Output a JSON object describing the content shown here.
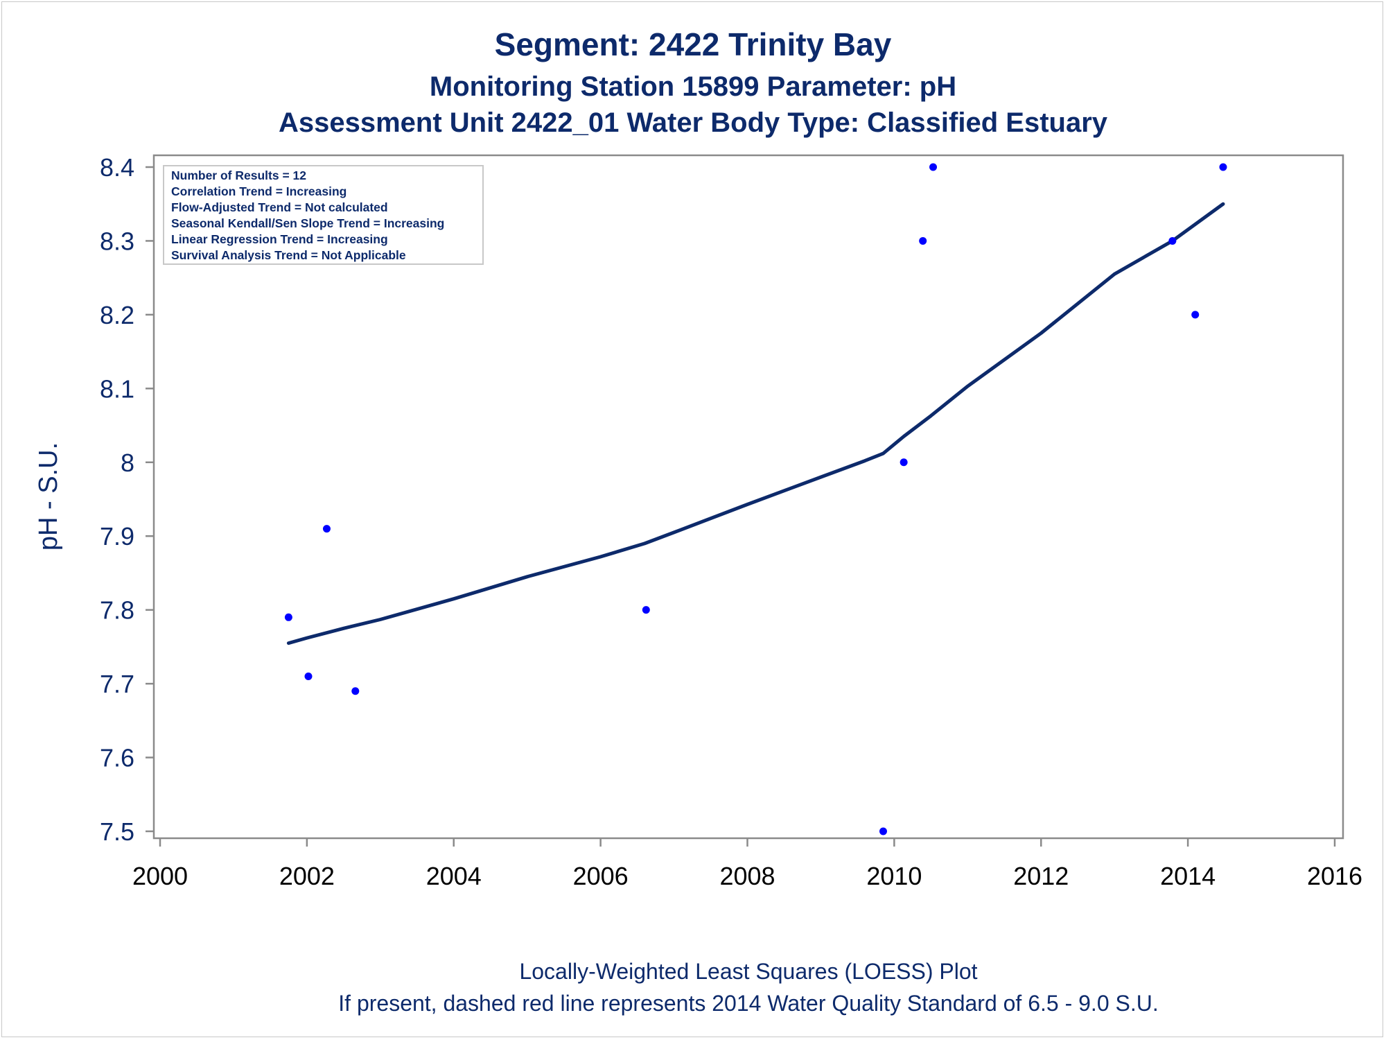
{
  "titles": {
    "line1": "Segment: 2422  Trinity Bay",
    "line2": "Monitoring Station 15899 Parameter: pH",
    "line3": "Assessment Unit 2422_01   Water Body Type: Classified Estuary"
  },
  "stats_box": {
    "lines": [
      "Number of Results = 12",
      "Correlation Trend = Increasing",
      "Flow-Adjusted Trend = Not calculated",
      "Seasonal Kendall/Sen Slope Trend = Increasing",
      "Linear Regression Trend = Increasing",
      "Survival Analysis Trend = Not Applicable"
    ]
  },
  "footnotes": {
    "line1": "Locally-Weighted Least Squares (LOESS) Plot",
    "line2": "If present, dashed red line represents 2014 Water Quality Standard of 6.5 - 9.0 S.U."
  },
  "colors": {
    "points": "#0000ff",
    "loess_line": "#0d2a6b",
    "text": "#0d2a6b",
    "axis": "#8a8a8a"
  },
  "chart_data": {
    "type": "scatter",
    "title": "Segment: 2422  Trinity Bay",
    "xlabel": "",
    "ylabel": "pH - S.U.",
    "xlim": [
      2000,
      2016
    ],
    "ylim": [
      7.5,
      8.4
    ],
    "x_ticks": [
      2000,
      2002,
      2004,
      2006,
      2008,
      2010,
      2012,
      2014,
      2016
    ],
    "y_ticks": [
      7.5,
      7.6,
      7.7,
      7.8,
      7.9,
      8,
      8.1,
      8.2,
      8.3,
      8.4
    ],
    "y_tick_labels": [
      "7.5",
      "7.6",
      "7.7",
      "7.8",
      "7.9",
      "8",
      "8.1",
      "8.2",
      "8.3",
      "8.4"
    ],
    "grid": false,
    "series": [
      {
        "kind": "points",
        "x": [
          2001.75,
          2002.02,
          2002.27,
          2002.66,
          2006.62,
          2009.85,
          2010.13,
          2010.39,
          2010.53,
          2013.79,
          2014.1,
          2014.48
        ],
        "y": [
          7.79,
          7.71,
          7.91,
          7.69,
          7.8,
          7.5,
          8.0,
          8.3,
          8.4,
          8.3,
          8.2,
          8.4
        ]
      },
      {
        "kind": "loess-line",
        "x": [
          2001.75,
          2002.0,
          2002.5,
          2003.0,
          2004.0,
          2005.0,
          2006.0,
          2006.6,
          2007.0,
          2008.0,
          2009.0,
          2009.6,
          2009.85,
          2010.13,
          2010.5,
          2011.0,
          2012.0,
          2013.0,
          2013.79,
          2014.48
        ],
        "y": [
          7.755,
          7.762,
          7.775,
          7.787,
          7.815,
          7.845,
          7.872,
          7.89,
          7.905,
          7.943,
          7.98,
          8.002,
          8.012,
          8.035,
          8.063,
          8.103,
          8.175,
          8.255,
          8.3,
          8.35
        ]
      }
    ]
  }
}
